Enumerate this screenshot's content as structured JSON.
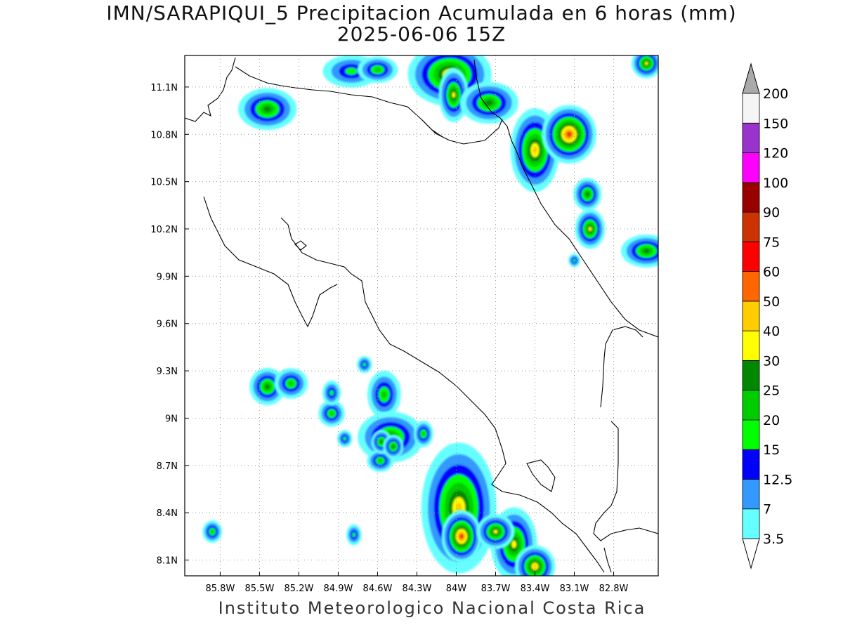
{
  "title_line1": "IMN/SARAPIQUI_5 Precipitacion Acumulada en 6 horas (mm)",
  "title_line2": "2025-06-06 15Z",
  "footer": "Instituto Meteorologico Nacional Costa Rica",
  "map": {
    "lon_range": [
      -86.07,
      -82.46
    ],
    "lat_range": [
      8.0,
      11.3
    ],
    "x_ticks": [
      {
        "value": -85.8,
        "label": "85.8W"
      },
      {
        "value": -85.5,
        "label": "85.5W"
      },
      {
        "value": -85.2,
        "label": "85.2W"
      },
      {
        "value": -84.9,
        "label": "84.9W"
      },
      {
        "value": -84.6,
        "label": "84.6W"
      },
      {
        "value": -84.3,
        "label": "84.3W"
      },
      {
        "value": -84.0,
        "label": "84W"
      },
      {
        "value": -83.7,
        "label": "83.7W"
      },
      {
        "value": -83.4,
        "label": "83.4W"
      },
      {
        "value": -83.1,
        "label": "83.1W"
      },
      {
        "value": -82.8,
        "label": "82.8W"
      }
    ],
    "y_ticks": [
      {
        "value": 11.1,
        "label": "11.1N"
      },
      {
        "value": 10.8,
        "label": "10.8N"
      },
      {
        "value": 10.5,
        "label": "10.5N"
      },
      {
        "value": 10.2,
        "label": "10.2N"
      },
      {
        "value": 9.9,
        "label": "9.9N"
      },
      {
        "value": 9.6,
        "label": "9.6N"
      },
      {
        "value": 9.3,
        "label": "9.3N"
      },
      {
        "value": 9.0,
        "label": "9N"
      },
      {
        "value": 8.7,
        "label": "8.7N"
      },
      {
        "value": 8.4,
        "label": "8.4N"
      },
      {
        "value": 8.1,
        "label": "8.1N"
      }
    ],
    "grid": true,
    "grid_style": "dotted"
  },
  "colorbar": {
    "levels": [
      {
        "label": "3.5",
        "color": "#66ffff"
      },
      {
        "label": "7",
        "color": "#3399ff"
      },
      {
        "label": "12.5",
        "color": "#0000ff"
      },
      {
        "label": "15",
        "color": "#00ff00"
      },
      {
        "label": "20",
        "color": "#00cc00"
      },
      {
        "label": "25",
        "color": "#008800"
      },
      {
        "label": "30",
        "color": "#ffff00"
      },
      {
        "label": "40",
        "color": "#ffcc00"
      },
      {
        "label": "50",
        "color": "#ff6600"
      },
      {
        "label": "60",
        "color": "#ff0000"
      },
      {
        "label": "75",
        "color": "#cc3300"
      },
      {
        "label": "90",
        "color": "#990000"
      },
      {
        "label": "100",
        "color": "#ff00ff"
      },
      {
        "label": "120",
        "color": "#9933cc"
      },
      {
        "label": "150",
        "color": "#f5f5f5"
      },
      {
        "label": "200",
        "color": "#aaaaaa"
      }
    ],
    "bottom_triangle_color": "#ffffff",
    "top_triangle_color": "#aaaaaa"
  },
  "precip_cells": [
    {
      "lon": -85.44,
      "lat": 10.96,
      "rx": 0.14,
      "ry": 0.08,
      "level": 5
    },
    {
      "lon": -84.8,
      "lat": 11.2,
      "rx": 0.16,
      "ry": 0.07,
      "level": 3
    },
    {
      "lon": -84.6,
      "lat": 11.21,
      "rx": 0.1,
      "ry": 0.05,
      "level": 4
    },
    {
      "lon": -84.05,
      "lat": 11.18,
      "rx": 0.18,
      "ry": 0.11,
      "level": 7
    },
    {
      "lon": -84.02,
      "lat": 11.05,
      "rx": 0.06,
      "ry": 0.1,
      "level": 6
    },
    {
      "lon": -83.75,
      "lat": 11.0,
      "rx": 0.14,
      "ry": 0.08,
      "level": 5
    },
    {
      "lon": -83.4,
      "lat": 10.7,
      "rx": 0.1,
      "ry": 0.15,
      "level": 7
    },
    {
      "lon": -83.14,
      "lat": 10.8,
      "rx": 0.1,
      "ry": 0.09,
      "level": 9
    },
    {
      "lon": -83.0,
      "lat": 10.42,
      "rx": 0.06,
      "ry": 0.06,
      "level": 5
    },
    {
      "lon": -82.98,
      "lat": 10.2,
      "rx": 0.06,
      "ry": 0.07,
      "level": 6
    },
    {
      "lon": -82.55,
      "lat": 10.06,
      "rx": 0.12,
      "ry": 0.06,
      "level": 5
    },
    {
      "lon": -82.55,
      "lat": 11.25,
      "rx": 0.06,
      "ry": 0.05,
      "level": 6
    },
    {
      "lon": -85.44,
      "lat": 9.2,
      "rx": 0.08,
      "ry": 0.07,
      "level": 5
    },
    {
      "lon": -85.26,
      "lat": 9.22,
      "rx": 0.08,
      "ry": 0.06,
      "level": 4
    },
    {
      "lon": -84.95,
      "lat": 9.03,
      "rx": 0.06,
      "ry": 0.05,
      "level": 4
    },
    {
      "lon": -84.95,
      "lat": 9.16,
      "rx": 0.04,
      "ry": 0.05,
      "level": 3
    },
    {
      "lon": -84.55,
      "lat": 9.15,
      "rx": 0.08,
      "ry": 0.1,
      "level": 4
    },
    {
      "lon": -84.5,
      "lat": 8.88,
      "rx": 0.16,
      "ry": 0.1,
      "level": 5
    },
    {
      "lon": -84.58,
      "lat": 8.73,
      "rx": 0.06,
      "ry": 0.04,
      "level": 4
    },
    {
      "lon": -83.98,
      "lat": 8.43,
      "rx": 0.16,
      "ry": 0.24,
      "level": 7
    },
    {
      "lon": -83.96,
      "lat": 8.25,
      "rx": 0.07,
      "ry": 0.08,
      "level": 9
    },
    {
      "lon": -83.56,
      "lat": 8.2,
      "rx": 0.1,
      "ry": 0.14,
      "level": 6
    },
    {
      "lon": -83.4,
      "lat": 8.06,
      "rx": 0.08,
      "ry": 0.07,
      "level": 7
    },
    {
      "lon": -83.7,
      "lat": 8.28,
      "rx": 0.08,
      "ry": 0.06,
      "level": 6
    },
    {
      "lon": -85.86,
      "lat": 8.28,
      "rx": 0.04,
      "ry": 0.04,
      "level": 4
    },
    {
      "lon": -84.85,
      "lat": 8.87,
      "rx": 0.03,
      "ry": 0.03,
      "level": 3
    },
    {
      "lon": -84.78,
      "lat": 8.26,
      "rx": 0.03,
      "ry": 0.04,
      "level": 3
    },
    {
      "lon": -84.7,
      "lat": 9.34,
      "rx": 0.03,
      "ry": 0.03,
      "level": 3
    },
    {
      "lon": -84.57,
      "lat": 8.85,
      "rx": 0.04,
      "ry": 0.04,
      "level": 5
    },
    {
      "lon": -84.48,
      "lat": 8.82,
      "rx": 0.04,
      "ry": 0.04,
      "level": 5
    },
    {
      "lon": -84.25,
      "lat": 8.9,
      "rx": 0.04,
      "ry": 0.05,
      "level": 4
    },
    {
      "lon": -83.1,
      "lat": 10.0,
      "rx": 0.02,
      "ry": 0.02,
      "level": 3
    }
  ]
}
